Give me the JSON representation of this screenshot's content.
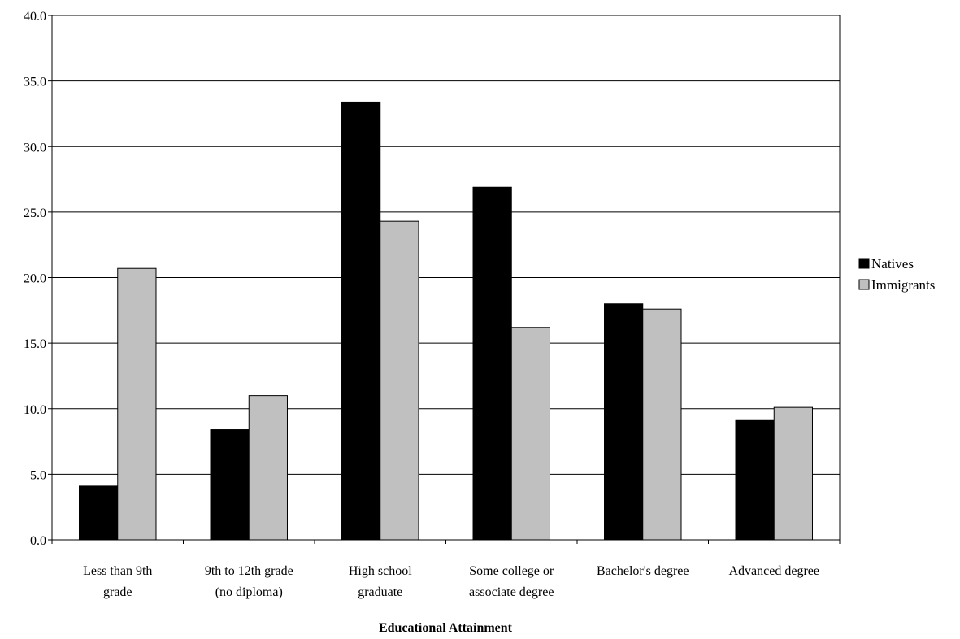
{
  "chart_data": {
    "type": "bar",
    "title": "",
    "xlabel": "Educational Attainment",
    "ylabel": "",
    "ylim": [
      0,
      40
    ],
    "ytick_step": 5,
    "ytick_labels": [
      "0.0",
      "5.0",
      "10.0",
      "15.0",
      "20.0",
      "25.0",
      "30.0",
      "35.0",
      "40.0"
    ],
    "grid": true,
    "legend_position": "right",
    "categories": [
      [
        "Less than 9th",
        "grade"
      ],
      [
        "9th to 12th grade",
        "(no diploma)"
      ],
      [
        "High school",
        "graduate"
      ],
      [
        "Some college or",
        "associate degree"
      ],
      [
        "Bachelor's degree"
      ],
      [
        "Advanced degree"
      ]
    ],
    "series": [
      {
        "name": "Natives",
        "color": "#000000",
        "values": [
          4.1,
          8.4,
          33.4,
          26.9,
          18.0,
          9.1
        ]
      },
      {
        "name": "Immigrants",
        "color": "#c0c0c0",
        "values": [
          20.7,
          11.0,
          24.3,
          16.2,
          17.6,
          10.1
        ]
      }
    ]
  }
}
